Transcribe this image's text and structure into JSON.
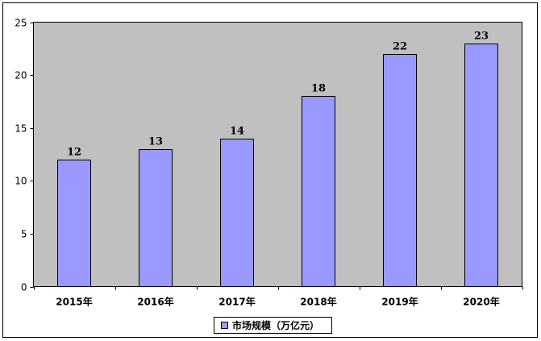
{
  "chart_data": {
    "type": "bar",
    "categories": [
      "2015年",
      "2016年",
      "2017年",
      "2018年",
      "2019年",
      "2020年"
    ],
    "series": [
      {
        "name": "市场规模（万亿元）",
        "values": [
          12,
          13,
          14,
          18,
          22,
          23
        ]
      }
    ],
    "title": "",
    "xlabel": "",
    "ylabel": "",
    "ylim": [
      0,
      25
    ],
    "yticks": [
      0,
      5,
      10,
      15,
      20,
      25
    ],
    "grid": false,
    "legend": "bottom",
    "value_labels": true,
    "colors": {
      "plot_background": "#c0c0c0",
      "bar_fill": "#9999ff",
      "bar_stroke": "#000000",
      "frame": "#000000"
    }
  }
}
